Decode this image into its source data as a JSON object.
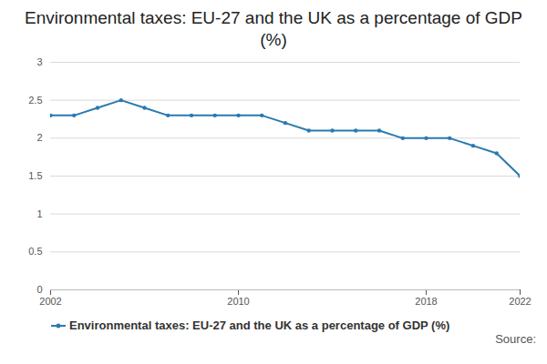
{
  "chart_data": {
    "type": "line",
    "title": "Environmental taxes: EU-27 and the UK as a percentage of GDP (%)",
    "x": [
      2002,
      2003,
      2004,
      2005,
      2006,
      2007,
      2008,
      2009,
      2010,
      2011,
      2012,
      2013,
      2014,
      2015,
      2016,
      2017,
      2018,
      2019,
      2020,
      2021,
      2022
    ],
    "series": [
      {
        "name": "Environmental taxes: EU-27 and the UK as a percentage of GDP (%)",
        "color": "#2a7ab0",
        "marker": "circle",
        "values": [
          2.3,
          2.3,
          2.4,
          2.5,
          2.4,
          2.3,
          2.3,
          2.3,
          2.3,
          2.3,
          2.2,
          2.1,
          2.1,
          2.1,
          2.1,
          2.0,
          2.0,
          2.0,
          1.9,
          1.8,
          1.5
        ]
      }
    ],
    "xlim": [
      2002,
      2022
    ],
    "xticks": [
      2002,
      2010,
      2018,
      2022
    ],
    "ylim": [
      0,
      3
    ],
    "yticks": [
      0,
      0.5,
      1,
      1.5,
      2,
      2.5,
      3
    ],
    "grid": true,
    "legend": "bottom",
    "source": "Source:"
  }
}
